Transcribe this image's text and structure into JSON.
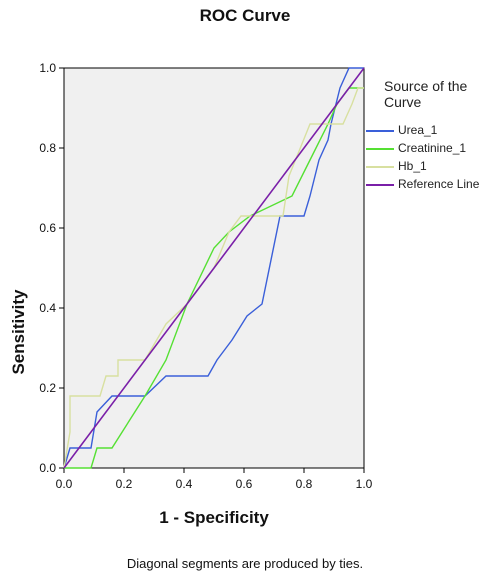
{
  "chart_data": {
    "type": "line",
    "title": "ROC Curve",
    "xlabel": "1 - Specificity",
    "ylabel": "Sensitivity",
    "xlim": [
      0,
      1
    ],
    "ylim": [
      0,
      1
    ],
    "x_ticks": [
      "0.0",
      "0.2",
      "0.4",
      "0.6",
      "0.8",
      "1.0"
    ],
    "y_ticks": [
      "0.0",
      "0.2",
      "0.4",
      "0.6",
      "0.8",
      "1.0"
    ],
    "legend_title": "Source of the Curve",
    "legend_position": "right",
    "grid": false,
    "footnote": "Diagonal segments are produced by ties.",
    "series": [
      {
        "name": "Urea_1",
        "color": "#3a5fd9",
        "points": [
          [
            0.0,
            0.0
          ],
          [
            0.02,
            0.05
          ],
          [
            0.09,
            0.05
          ],
          [
            0.11,
            0.14
          ],
          [
            0.16,
            0.18
          ],
          [
            0.27,
            0.18
          ],
          [
            0.34,
            0.23
          ],
          [
            0.48,
            0.23
          ],
          [
            0.51,
            0.27
          ],
          [
            0.56,
            0.32
          ],
          [
            0.61,
            0.38
          ],
          [
            0.66,
            0.41
          ],
          [
            0.72,
            0.63
          ],
          [
            0.8,
            0.63
          ],
          [
            0.82,
            0.68
          ],
          [
            0.85,
            0.77
          ],
          [
            0.88,
            0.82
          ],
          [
            0.89,
            0.86
          ],
          [
            0.92,
            0.95
          ],
          [
            0.95,
            1.0
          ],
          [
            1.0,
            1.0
          ]
        ]
      },
      {
        "name": "Creatinine_1",
        "color": "#55e033",
        "points": [
          [
            0.0,
            0.0
          ],
          [
            0.09,
            0.0
          ],
          [
            0.11,
            0.05
          ],
          [
            0.16,
            0.05
          ],
          [
            0.27,
            0.18
          ],
          [
            0.34,
            0.27
          ],
          [
            0.41,
            0.41
          ],
          [
            0.5,
            0.55
          ],
          [
            0.55,
            0.59
          ],
          [
            0.62,
            0.63
          ],
          [
            0.76,
            0.68
          ],
          [
            0.82,
            0.77
          ],
          [
            0.88,
            0.86
          ],
          [
            0.91,
            0.91
          ],
          [
            0.95,
            0.95
          ],
          [
            1.0,
            0.95
          ]
        ]
      },
      {
        "name": "Hb_1",
        "color": "#d8e0a0",
        "points": [
          [
            0.0,
            0.0
          ],
          [
            0.02,
            0.09
          ],
          [
            0.02,
            0.18
          ],
          [
            0.12,
            0.18
          ],
          [
            0.14,
            0.23
          ],
          [
            0.18,
            0.23
          ],
          [
            0.18,
            0.27
          ],
          [
            0.27,
            0.27
          ],
          [
            0.34,
            0.36
          ],
          [
            0.41,
            0.41
          ],
          [
            0.5,
            0.5
          ],
          [
            0.55,
            0.59
          ],
          [
            0.59,
            0.63
          ],
          [
            0.73,
            0.63
          ],
          [
            0.75,
            0.73
          ],
          [
            0.82,
            0.86
          ],
          [
            0.93,
            0.86
          ],
          [
            0.96,
            0.91
          ],
          [
            0.98,
            0.95
          ],
          [
            1.0,
            0.95
          ]
        ]
      },
      {
        "name": "Reference Line",
        "color": "#7a1fa8",
        "points": [
          [
            0.0,
            0.0
          ],
          [
            1.0,
            1.0
          ]
        ]
      }
    ]
  }
}
